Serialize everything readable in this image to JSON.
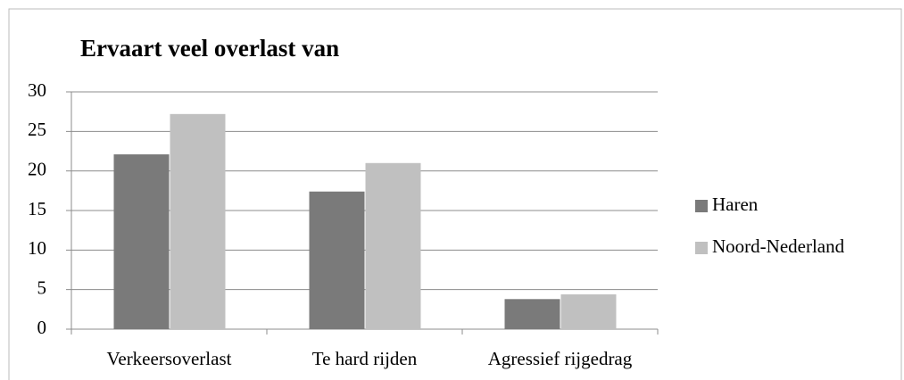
{
  "chart_data": {
    "type": "bar",
    "title": "Ervaart veel overlast van",
    "categories": [
      "Verkeersoverlast",
      "Te hard rijden",
      "Agressief rijgedrag"
    ],
    "series": [
      {
        "name": "Haren",
        "color": "#7a7a7a",
        "values": [
          22.1,
          17.4,
          3.8
        ]
      },
      {
        "name": "Noord-Nederland",
        "color": "#c0c0c0",
        "values": [
          27.2,
          21.0,
          4.4
        ]
      }
    ],
    "ylim": [
      0,
      30
    ],
    "yticks": [
      0,
      5,
      10,
      15,
      20,
      25,
      30
    ],
    "grid": true,
    "legend": "right"
  }
}
